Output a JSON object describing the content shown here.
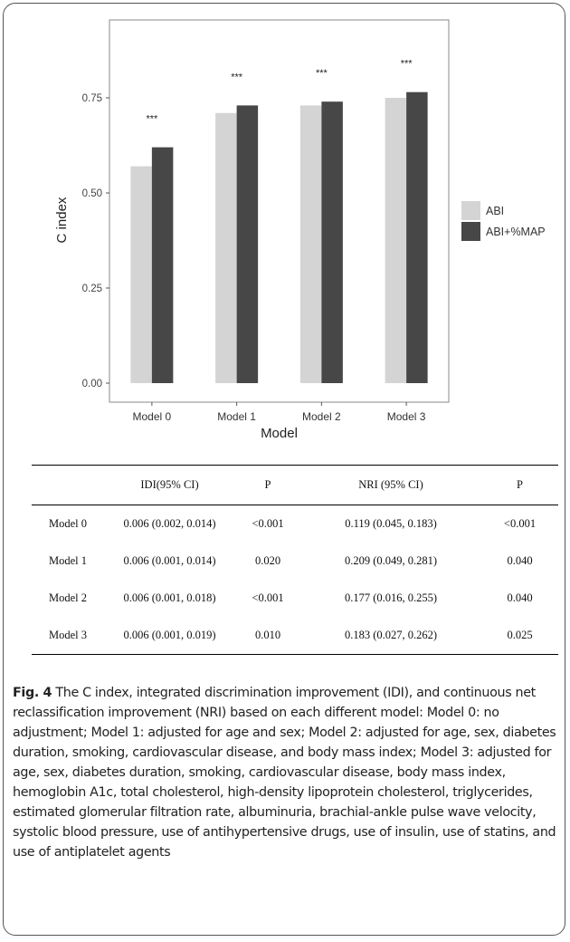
{
  "chart_data": {
    "type": "bar",
    "xlabel": "Model",
    "ylabel": "C index",
    "categories": [
      "Model 0",
      "Model 1",
      "Model 2",
      "Model 3"
    ],
    "series": [
      {
        "name": "ABI",
        "values": [
          0.57,
          0.71,
          0.73,
          0.75
        ],
        "color": "#d4d4d4"
      },
      {
        "name": "ABI+%MAP",
        "values": [
          0.62,
          0.73,
          0.74,
          0.765
        ],
        "color": "#474747"
      }
    ],
    "significance": [
      "***",
      "***",
      "***",
      "***"
    ],
    "yticks": [
      "0.00",
      "0.25",
      "0.50",
      "0.75"
    ],
    "ylim": [
      0,
      0.85
    ],
    "grid": false,
    "legend_position": "right"
  },
  "table": {
    "headers": [
      "",
      "IDI(95% CI)",
      "P",
      "NRI (95% CI)",
      "P"
    ],
    "rows": [
      [
        "Model 0",
        "0.006 (0.002, 0.014)",
        "<0.001",
        "0.119 (0.045, 0.183)",
        "<0.001"
      ],
      [
        "Model 1",
        "0.006 (0.001, 0.014)",
        "0.020",
        "0.209 (0.049, 0.281)",
        "0.040"
      ],
      [
        "Model 2",
        "0.006 (0.001, 0.018)",
        "<0.001",
        "0.177 (0.016, 0.255)",
        "0.040"
      ],
      [
        "Model 3",
        "0.006 (0.001, 0.019)",
        "0.010",
        "0.183 (0.027, 0.262)",
        "0.025"
      ]
    ]
  },
  "caption": {
    "label": "Fig. 4",
    "text": "The C index, integrated discrimination improvement (IDI), and continuous net reclassification improvement (NRI) based on each different model: Model 0: no adjustment; Model 1: adjusted for age and sex; Model 2: adjusted for age, sex, diabetes duration, smoking, cardiovascular disease, and body mass index; Model 3: adjusted for age, sex, diabetes duration, smoking, cardiovascular disease, body mass index, hemoglobin A1c, total cholesterol, high-density lipoprotein cholesterol, triglycerides, estimated glomerular filtration rate, albuminuria, brachial-ankle pulse wave velocity, systolic blood pressure, use of antihypertensive drugs, use of insulin, use of statins, and use of antiplatelet agents"
  }
}
